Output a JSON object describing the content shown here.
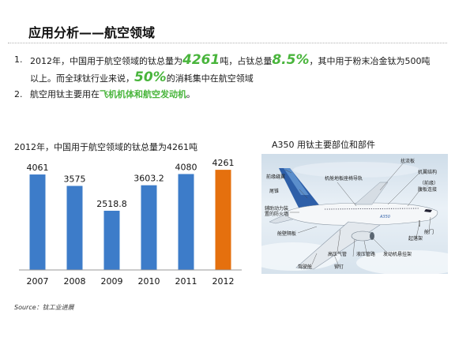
{
  "slide": {
    "title": "应用分析——航空领域"
  },
  "bullets": {
    "b1_num": "1.",
    "b1_text_a": "2012年，中国用于航空领域的钛总量为",
    "b1_value_a": "4261",
    "b1_text_b": "吨，占钛总量",
    "b1_value_b": "8.5%",
    "b1_text_c": "，其中用于粉末冶金钛为500吨",
    "b1_text_d": "以上。而全球钛行业来说，",
    "b1_value_c": "50%",
    "b1_text_e": "的消耗集中在航空领域",
    "b2_num": "2.",
    "b2_text_a": "航空用钛主要用在",
    "b2_highlight": "飞机机体和航空发动机",
    "b2_text_b": "。"
  },
  "chart_data": {
    "type": "bar",
    "title": "2012年，中国用于航空领域的钛总量为4261吨",
    "categories": [
      "2007",
      "2008",
      "2009",
      "2010",
      "2011",
      "2012"
    ],
    "values": [
      4061,
      3575,
      2518.8,
      3603.2,
      4080,
      4261
    ],
    "value_labels": [
      "4061",
      "3575",
      "2518.8",
      "3603.2",
      "4080",
      "4261"
    ],
    "colors": [
      "#3d7cc9",
      "#3d7cc9",
      "#3d7cc9",
      "#3d7cc9",
      "#3d7cc9",
      "#e5700e"
    ],
    "ylim": [
      0,
      4600
    ],
    "grid": false,
    "legend": "none"
  },
  "figure": {
    "title": "A350 用钛主要部位和部件",
    "labels": {
      "wing_spoiler": "扰流板",
      "engine_pylon": "发动机悬挂架",
      "flap_track": "襟翼滑轨",
      "fuselage_frame": "机翼结构",
      "front_rib": "（前缘）",
      "rudder_device": "腹板连接",
      "tail_cone": "尾锥",
      "landing_gear": "起落架",
      "door": "舱门",
      "leading_edge_device": "前缘缝翼",
      "cabin": "舱壁隔板",
      "hydraulic": "液压管路",
      "high_pressure_duct": "高压气管",
      "nose": "机头",
      "floor_beam": "机舱地板座椅导轨",
      "auxiliary": "辅助动力装置的防火墙",
      "outer_cabin": "驾驶舱",
      "fastener": "铆钉"
    },
    "livery": "A350"
  },
  "source": {
    "text": "Source：钛工业进展"
  }
}
